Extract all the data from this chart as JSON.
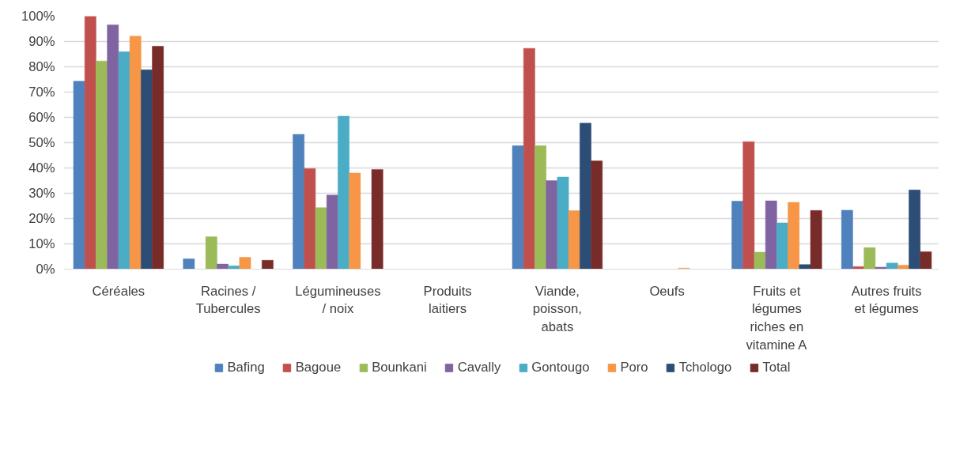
{
  "chart_data": {
    "type": "bar",
    "categories": [
      "Céréales",
      "Racines / Tubercules",
      "Légumineuses / noix",
      "Produits laitiers",
      "Viande, poisson, abats",
      "Oeufs",
      "Fruits et légumes riches en vitamine A",
      "Autres fruits et légumes"
    ],
    "series": [
      {
        "name": "Bafing",
        "color": "#4f81bd",
        "values": [
          74.3,
          4.1,
          53.3,
          0,
          48.8,
          0,
          26.9,
          23.3
        ]
      },
      {
        "name": "Bagoue",
        "color": "#c0504d",
        "values": [
          100,
          0,
          39.8,
          0,
          87.3,
          0,
          50.4,
          1.0
        ]
      },
      {
        "name": "Bounkani",
        "color": "#9bbb59",
        "values": [
          82.3,
          12.8,
          24.3,
          0,
          48.8,
          0,
          6.7,
          8.5
        ]
      },
      {
        "name": "Cavally",
        "color": "#8064a2",
        "values": [
          96.6,
          2.0,
          29.3,
          0,
          35.0,
          0,
          27.0,
          0.8
        ]
      },
      {
        "name": "Gontougo",
        "color": "#4bacc6",
        "values": [
          85.9,
          1.3,
          60.5,
          0,
          36.4,
          0,
          18.3,
          2.4
        ]
      },
      {
        "name": "Poro",
        "color": "#f79646",
        "values": [
          92.1,
          4.7,
          38.0,
          0,
          23.1,
          0.4,
          26.4,
          1.6
        ]
      },
      {
        "name": "Tchologo",
        "color": "#2c4d75",
        "values": [
          78.8,
          0,
          0,
          0,
          57.7,
          0,
          1.8,
          31.3
        ]
      },
      {
        "name": "Total",
        "color": "#772c2a",
        "values": [
          88.1,
          3.5,
          39.4,
          0,
          42.8,
          0,
          23.2,
          6.9
        ]
      }
    ],
    "ylim": [
      0,
      100
    ],
    "yticks": [
      {
        "value": 0,
        "label": "0%"
      },
      {
        "value": 10,
        "label": "10%"
      },
      {
        "value": 20,
        "label": "20%"
      },
      {
        "value": 30,
        "label": "30%"
      },
      {
        "value": 40,
        "label": "40%"
      },
      {
        "value": 50,
        "label": "50%"
      },
      {
        "value": 60,
        "label": "60%"
      },
      {
        "value": 70,
        "label": "70%"
      },
      {
        "value": 80,
        "label": "80%"
      },
      {
        "value": 90,
        "label": "90%"
      },
      {
        "value": 100,
        "label": "100%"
      }
    ],
    "grid": "y",
    "legend": "bottom"
  }
}
